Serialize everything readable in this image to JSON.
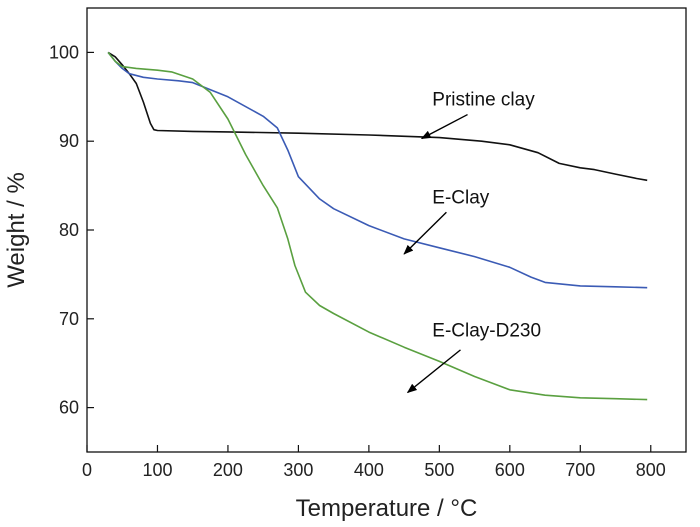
{
  "chart_data": {
    "type": "line",
    "title": "",
    "xlabel": "Temperature / °C",
    "ylabel": "Weight / %",
    "xlim": [
      0,
      850
    ],
    "ylim": [
      55,
      105
    ],
    "xticks": [
      0,
      100,
      200,
      300,
      400,
      500,
      600,
      700,
      800
    ],
    "yticks": [
      60,
      70,
      80,
      90,
      100
    ],
    "grid": false,
    "legend": "none",
    "series": [
      {
        "name": "Pristine clay",
        "color": "#111111",
        "points": [
          [
            30,
            100
          ],
          [
            40,
            99.5
          ],
          [
            50,
            98.6
          ],
          [
            60,
            97.6
          ],
          [
            70,
            96.5
          ],
          [
            80,
            94.4
          ],
          [
            90,
            92
          ],
          [
            95,
            91.3
          ],
          [
            100,
            91.2
          ],
          [
            150,
            91.1
          ],
          [
            200,
            91.05
          ],
          [
            300,
            90.9
          ],
          [
            400,
            90.7
          ],
          [
            500,
            90.4
          ],
          [
            560,
            90.0
          ],
          [
            600,
            89.6
          ],
          [
            640,
            88.7
          ],
          [
            670,
            87.5
          ],
          [
            700,
            87.0
          ],
          [
            720,
            86.8
          ],
          [
            750,
            86.3
          ],
          [
            780,
            85.8
          ],
          [
            795,
            85.6
          ]
        ]
      },
      {
        "name": "E-Clay",
        "color": "#3b5bb5",
        "points": [
          [
            30,
            100
          ],
          [
            40,
            99.0
          ],
          [
            50,
            98.2
          ],
          [
            60,
            97.6
          ],
          [
            80,
            97.2
          ],
          [
            100,
            97.0
          ],
          [
            130,
            96.8
          ],
          [
            150,
            96.6
          ],
          [
            200,
            95.0
          ],
          [
            250,
            92.8
          ],
          [
            270,
            91.5
          ],
          [
            285,
            89.0
          ],
          [
            300,
            86.0
          ],
          [
            330,
            83.5
          ],
          [
            350,
            82.4
          ],
          [
            400,
            80.5
          ],
          [
            450,
            79.0
          ],
          [
            500,
            78.0
          ],
          [
            550,
            77.0
          ],
          [
            600,
            75.8
          ],
          [
            630,
            74.7
          ],
          [
            650,
            74.1
          ],
          [
            700,
            73.7
          ],
          [
            750,
            73.6
          ],
          [
            795,
            73.5
          ]
        ]
      },
      {
        "name": "E-Clay-D230",
        "color": "#5aa040",
        "points": [
          [
            30,
            100
          ],
          [
            40,
            99.0
          ],
          [
            50,
            98.4
          ],
          [
            70,
            98.2
          ],
          [
            100,
            98.0
          ],
          [
            120,
            97.8
          ],
          [
            150,
            97.0
          ],
          [
            175,
            95.5
          ],
          [
            200,
            92.5
          ],
          [
            225,
            88.5
          ],
          [
            250,
            85.0
          ],
          [
            270,
            82.5
          ],
          [
            285,
            79.0
          ],
          [
            295,
            76.0
          ],
          [
            310,
            73.0
          ],
          [
            330,
            71.5
          ],
          [
            350,
            70.6
          ],
          [
            400,
            68.5
          ],
          [
            450,
            66.8
          ],
          [
            500,
            65.2
          ],
          [
            550,
            63.5
          ],
          [
            600,
            62.0
          ],
          [
            650,
            61.4
          ],
          [
            700,
            61.1
          ],
          [
            750,
            61.0
          ],
          [
            795,
            60.9
          ]
        ]
      }
    ],
    "annotations": [
      {
        "text": "Pristine clay",
        "text_at": [
          490,
          94.0
        ],
        "arrow_from": [
          540,
          93.0
        ],
        "arrow_to": [
          475,
          90.3
        ]
      },
      {
        "text": "E-Clay",
        "text_at": [
          490,
          83.0
        ],
        "arrow_from": [
          510,
          82.0
        ],
        "arrow_to": [
          450,
          77.3
        ]
      },
      {
        "text": "E-Clay-D230",
        "text_at": [
          490,
          68.0
        ],
        "arrow_from": [
          530,
          66.5
        ],
        "arrow_to": [
          455,
          61.7
        ]
      }
    ]
  }
}
